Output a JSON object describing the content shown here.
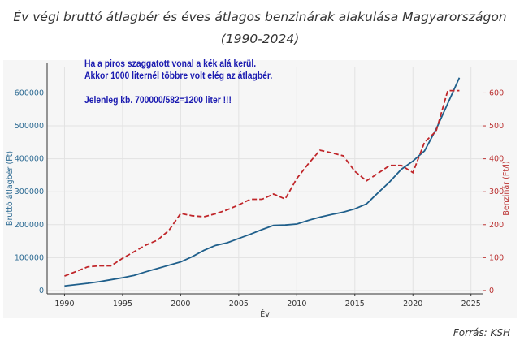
{
  "title": "Év végi bruttó átlagbér és éves átlagos benzinárak alakulása Magyarországon (1990-2024)",
  "source": "Forrás: KSH",
  "chart_data": {
    "type": "line",
    "title": "Év végi bruttó átlagbér és éves átlagos benzinárak alakulása Magyarországon (1990-2024)",
    "xlabel": "Év",
    "ylabel": "Bruttó átlagbér (Ft)",
    "ylabel_right": "Benzinár (Ft/l)",
    "xlim": [
      1988.5,
      2026
    ],
    "ylim": [
      -10000,
      680000
    ],
    "ylim_right": [
      -10,
      680
    ],
    "xticks": [
      1990,
      1995,
      2000,
      2005,
      2010,
      2015,
      2020,
      2025
    ],
    "yticks": [
      0,
      100000,
      200000,
      300000,
      400000,
      500000,
      600000
    ],
    "yticks_right": [
      0,
      100,
      200,
      300,
      400,
      500,
      600
    ],
    "grid": true,
    "x": [
      1990,
      1991,
      1992,
      1993,
      1994,
      1995,
      1996,
      1997,
      1998,
      1999,
      2000,
      2001,
      2002,
      2003,
      2004,
      2005,
      2006,
      2007,
      2008,
      2009,
      2010,
      2011,
      2012,
      2013,
      2014,
      2015,
      2016,
      2017,
      2018,
      2019,
      2020,
      2021,
      2022,
      2023,
      2024
    ],
    "series": [
      {
        "name": "Bruttó átlagbér",
        "axis": "left",
        "color": "#1f5f8b",
        "style": "solid",
        "values": [
          14000,
          18000,
          22000,
          27000,
          33000,
          39000,
          46000,
          57000,
          67000,
          77000,
          87000,
          103000,
          122000,
          137000,
          145000,
          158000,
          171000,
          185000,
          198000,
          199000,
          202000,
          213000,
          223000,
          231000,
          238000,
          248000,
          263000,
          297000,
          330000,
          368000,
          393000,
          424000,
          490000,
          568000,
          646000
        ]
      },
      {
        "name": "Benzinár",
        "axis": "right",
        "color": "#c0262a",
        "style": "dashed",
        "values": [
          44,
          58,
          72,
          75,
          75,
          98,
          118,
          138,
          153,
          183,
          234,
          227,
          224,
          233,
          245,
          260,
          277,
          277,
          293,
          278,
          340,
          385,
          426,
          418,
          409,
          362,
          333,
          356,
          380,
          380,
          358,
          450,
          484,
          607,
          607
        ]
      }
    ],
    "annotations": [
      "Ha a piros szaggatott vonal a kék alá kerül.",
      "Akkor 1000 liternél többre volt elég az átlagbér.",
      "",
      "Jelenleg  kb. 700000/582=1200 liter !!!"
    ]
  }
}
